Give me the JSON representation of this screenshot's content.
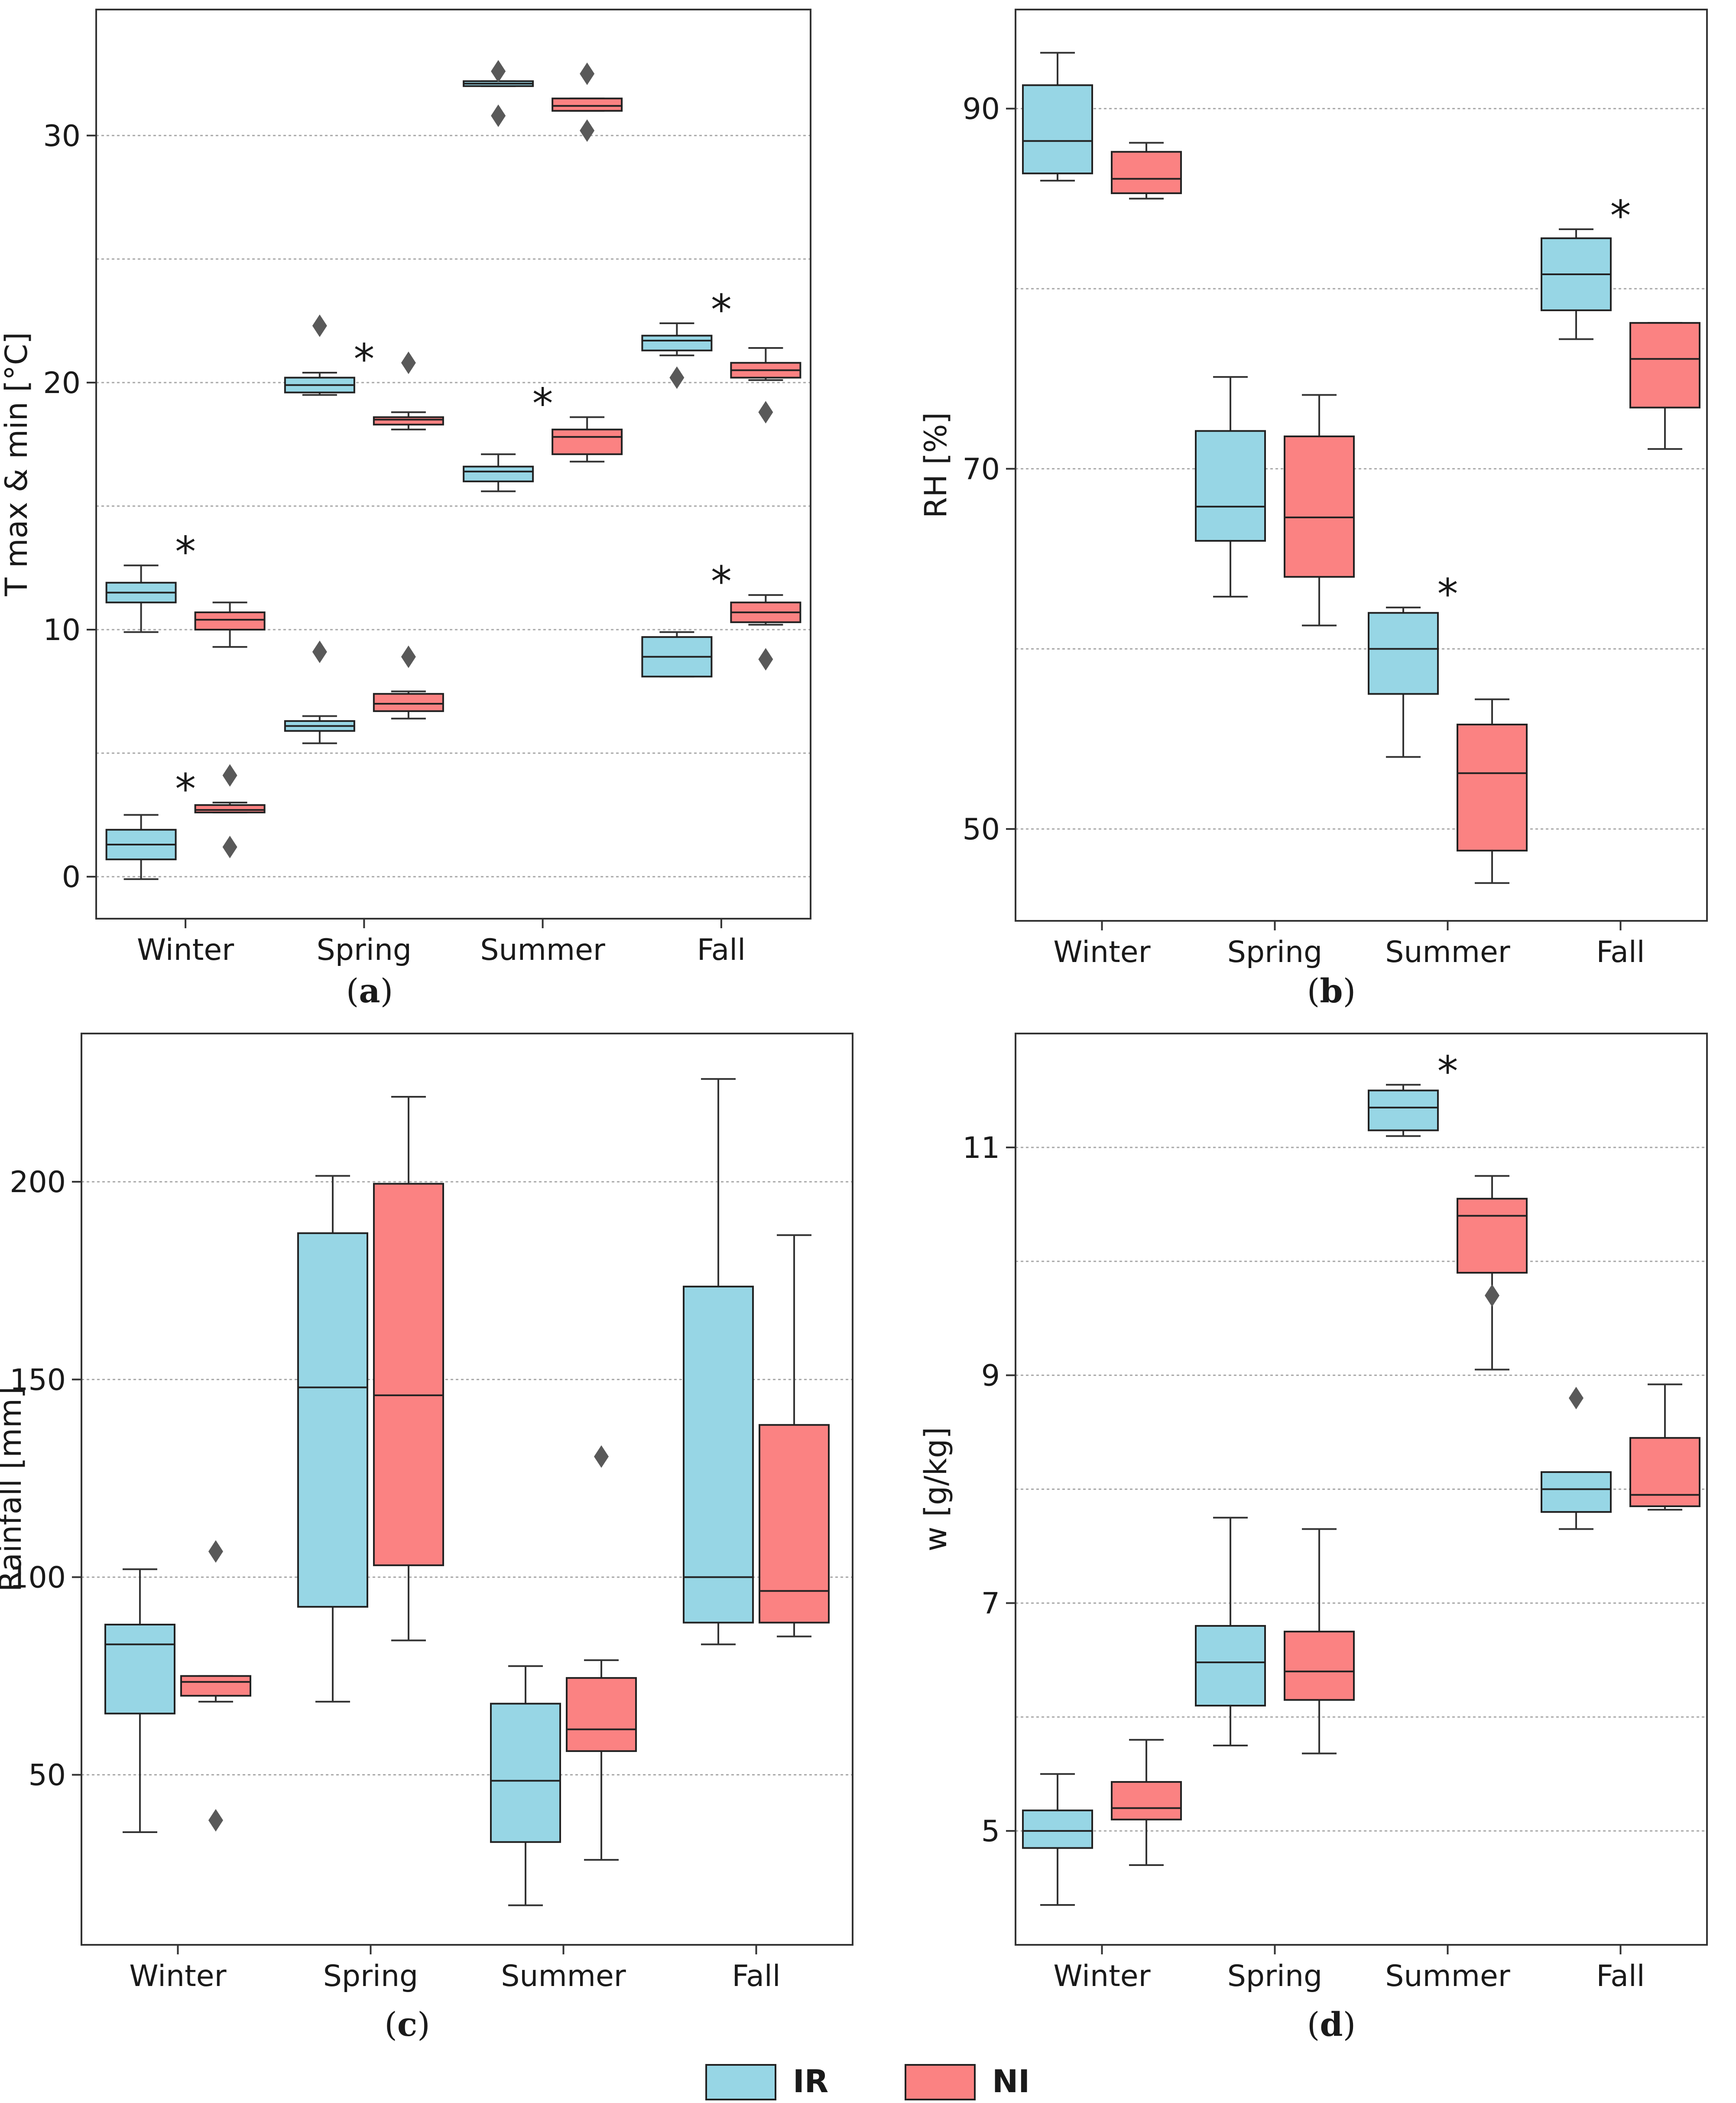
{
  "colors": {
    "IR": "#97d6e5",
    "NI": "#fb8282",
    "grid": "#a8a8a8",
    "outlier": "#595959"
  },
  "legend": {
    "items": [
      {
        "key": "IR",
        "label": "IR"
      },
      {
        "key": "NI",
        "label": "NI"
      }
    ]
  },
  "chart_data": [
    {
      "panel": "a",
      "type": "box",
      "ylabel": "T max & min [°C]",
      "categories": [
        "Winter",
        "Spring",
        "Summer",
        "Fall"
      ],
      "ylim": [
        -1.7,
        35.1
      ],
      "yticks": [
        0,
        10,
        20,
        30
      ],
      "grid_y": [
        0,
        5,
        10,
        15,
        20,
        25,
        30
      ],
      "groups": [
        {
          "category": "Winter",
          "level": "max",
          "IR": {
            "whislo": 9.9,
            "q1": 11.1,
            "med": 11.5,
            "q3": 11.9,
            "whishi": 12.6,
            "fliers": []
          },
          "NI": {
            "whislo": 9.3,
            "q1": 10.0,
            "med": 10.4,
            "q3": 10.7,
            "whishi": 11.1,
            "fliers": []
          },
          "sig": true
        },
        {
          "category": "Winter",
          "level": "min",
          "IR": {
            "whislo": -0.1,
            "q1": 0.7,
            "med": 1.3,
            "q3": 1.9,
            "whishi": 2.5,
            "fliers": []
          },
          "NI": {
            "whislo": 2.6,
            "q1": 2.6,
            "med": 2.7,
            "q3": 2.9,
            "whishi": 3.0,
            "fliers": [
              4.1,
              1.2
            ]
          },
          "sig": true
        },
        {
          "category": "Spring",
          "level": "max",
          "IR": {
            "whislo": 19.5,
            "q1": 19.6,
            "med": 19.9,
            "q3": 20.2,
            "whishi": 20.4,
            "fliers": [
              22.3
            ]
          },
          "NI": {
            "whislo": 18.1,
            "q1": 18.3,
            "med": 18.5,
            "q3": 18.6,
            "whishi": 18.8,
            "fliers": [
              20.8
            ]
          },
          "sig": true
        },
        {
          "category": "Spring",
          "level": "min",
          "IR": {
            "whislo": 5.4,
            "q1": 5.9,
            "med": 6.1,
            "q3": 6.3,
            "whishi": 6.5,
            "fliers": [
              9.1
            ]
          },
          "NI": {
            "whislo": 6.4,
            "q1": 6.7,
            "med": 7.0,
            "q3": 7.4,
            "whishi": 7.5,
            "fliers": [
              8.9
            ]
          },
          "sig": false
        },
        {
          "category": "Summer",
          "level": "max",
          "IR": {
            "whislo": 32.0,
            "q1": 32.0,
            "med": 32.1,
            "q3": 32.2,
            "whishi": 32.2,
            "fliers": [
              32.6,
              30.8
            ]
          },
          "NI": {
            "whislo": 31.0,
            "q1": 31.0,
            "med": 31.2,
            "q3": 31.5,
            "whishi": 31.5,
            "fliers": [
              32.5,
              30.2
            ]
          },
          "sig": false
        },
        {
          "category": "Summer",
          "level": "min",
          "IR": {
            "whislo": 15.6,
            "q1": 16.0,
            "med": 16.4,
            "q3": 16.6,
            "whishi": 17.1,
            "fliers": []
          },
          "NI": {
            "whislo": 16.8,
            "q1": 17.1,
            "med": 17.8,
            "q3": 18.1,
            "whishi": 18.6,
            "fliers": []
          },
          "sig": true
        },
        {
          "category": "Fall",
          "level": "max",
          "IR": {
            "whislo": 21.1,
            "q1": 21.3,
            "med": 21.7,
            "q3": 21.9,
            "whishi": 22.4,
            "fliers": [
              20.2
            ]
          },
          "NI": {
            "whislo": 20.1,
            "q1": 20.2,
            "med": 20.5,
            "q3": 20.8,
            "whishi": 21.4,
            "fliers": [
              18.8
            ]
          },
          "sig": true
        },
        {
          "category": "Fall",
          "level": "min",
          "IR": {
            "whislo": 8.1,
            "q1": 8.1,
            "med": 8.9,
            "q3": 9.7,
            "whishi": 9.9,
            "fliers": []
          },
          "NI": {
            "whislo": 10.2,
            "q1": 10.3,
            "med": 10.7,
            "q3": 11.1,
            "whishi": 11.4,
            "fliers": [
              8.8
            ]
          },
          "sig": true
        }
      ]
    },
    {
      "panel": "b",
      "type": "box",
      "ylabel": "RH [%]",
      "categories": [
        "Winter",
        "Spring",
        "Summer",
        "Fall"
      ],
      "ylim": [
        44.9,
        95.5
      ],
      "yticks": [
        50,
        70,
        90
      ],
      "grid_y": [
        50,
        60,
        70,
        80,
        90
      ],
      "groups": [
        {
          "category": "Winter",
          "IR": {
            "whislo": 86.0,
            "q1": 86.4,
            "med": 88.2,
            "q3": 91.3,
            "whishi": 93.1,
            "fliers": []
          },
          "NI": {
            "whislo": 85.0,
            "q1": 85.3,
            "med": 86.1,
            "q3": 87.6,
            "whishi": 88.1,
            "fliers": []
          },
          "sig": false
        },
        {
          "category": "Spring",
          "IR": {
            "whislo": 62.9,
            "q1": 66.0,
            "med": 67.9,
            "q3": 72.1,
            "whishi": 75.1,
            "fliers": []
          },
          "NI": {
            "whislo": 61.3,
            "q1": 64.0,
            "med": 67.3,
            "q3": 71.8,
            "whishi": 74.1,
            "fliers": []
          },
          "sig": false
        },
        {
          "category": "Summer",
          "IR": {
            "whislo": 54.0,
            "q1": 57.5,
            "med": 60.0,
            "q3": 62.0,
            "whishi": 62.3,
            "fliers": []
          },
          "NI": {
            "whislo": 47.0,
            "q1": 48.8,
            "med": 53.1,
            "q3": 55.8,
            "whishi": 57.2,
            "fliers": []
          },
          "sig": true
        },
        {
          "category": "Fall",
          "IR": {
            "whislo": 77.2,
            "q1": 78.8,
            "med": 80.8,
            "q3": 82.8,
            "whishi": 83.3,
            "fliers": []
          },
          "NI": {
            "whislo": 71.1,
            "q1": 73.4,
            "med": 76.1,
            "q3": 78.1,
            "whishi": 78.1,
            "fliers": []
          },
          "sig": true
        }
      ]
    },
    {
      "panel": "c",
      "type": "box",
      "ylabel": "Rainfall [mm]",
      "categories": [
        "Winter",
        "Spring",
        "Summer",
        "Fall"
      ],
      "ylim": [
        7.0,
        237.5
      ],
      "yticks": [
        50,
        100,
        150,
        200
      ],
      "grid_y": [
        50,
        100,
        150,
        200
      ],
      "groups": [
        {
          "category": "Winter",
          "IR": {
            "whislo": 35.5,
            "q1": 65.5,
            "med": 83.0,
            "q3": 88.0,
            "whishi": 102.0,
            "fliers": []
          },
          "NI": {
            "whislo": 68.5,
            "q1": 70.0,
            "med": 73.5,
            "q3": 75.0,
            "whishi": 75.0,
            "fliers": [
              106.5,
              38.5
            ]
          },
          "sig": false
        },
        {
          "category": "Spring",
          "IR": {
            "whislo": 68.5,
            "q1": 92.5,
            "med": 148.0,
            "q3": 187.0,
            "whishi": 201.5,
            "fliers": []
          },
          "NI": {
            "whislo": 84.0,
            "q1": 103.0,
            "med": 146.0,
            "q3": 199.5,
            "whishi": 221.5,
            "fliers": []
          },
          "sig": false
        },
        {
          "category": "Summer",
          "IR": {
            "whislo": 17.0,
            "q1": 33.0,
            "med": 48.5,
            "q3": 68.0,
            "whishi": 77.5,
            "fliers": []
          },
          "NI": {
            "whislo": 28.5,
            "q1": 56.0,
            "med": 61.5,
            "q3": 74.5,
            "whishi": 79.0,
            "fliers": [
              130.5
            ]
          },
          "sig": false
        },
        {
          "category": "Fall",
          "IR": {
            "whislo": 83.0,
            "q1": 88.5,
            "med": 100.0,
            "q3": 173.5,
            "whishi": 226.0,
            "fliers": []
          },
          "NI": {
            "whislo": 85.0,
            "q1": 88.5,
            "med": 96.5,
            "q3": 138.5,
            "whishi": 186.5,
            "fliers": []
          },
          "sig": false
        }
      ]
    },
    {
      "panel": "d",
      "type": "box",
      "ylabel": "w [g/kg]",
      "categories": [
        "Winter",
        "Spring",
        "Summer",
        "Fall"
      ],
      "ylim": [
        4.0,
        12.0
      ],
      "yticks": [
        5,
        7,
        9,
        11
      ],
      "grid_y": [
        5,
        6,
        7,
        8,
        9,
        10,
        11
      ],
      "groups": [
        {
          "category": "Winter",
          "IR": {
            "whislo": 4.35,
            "q1": 4.85,
            "med": 5.0,
            "q3": 5.18,
            "whishi": 5.5,
            "fliers": []
          },
          "NI": {
            "whislo": 4.7,
            "q1": 5.1,
            "med": 5.2,
            "q3": 5.43,
            "whishi": 5.8,
            "fliers": []
          },
          "sig": false
        },
        {
          "category": "Spring",
          "IR": {
            "whislo": 5.75,
            "q1": 6.1,
            "med": 6.48,
            "q3": 6.8,
            "whishi": 7.75,
            "fliers": []
          },
          "NI": {
            "whislo": 5.68,
            "q1": 6.15,
            "med": 6.4,
            "q3": 6.75,
            "whishi": 7.65,
            "fliers": []
          },
          "sig": false
        },
        {
          "category": "Summer",
          "IR": {
            "whislo": 11.1,
            "q1": 11.15,
            "med": 11.35,
            "q3": 11.5,
            "whishi": 11.55,
            "fliers": []
          },
          "NI": {
            "whislo": 9.05,
            "q1": 9.9,
            "med": 10.4,
            "q3": 10.55,
            "whishi": 10.75,
            "fliers": [
              9.7
            ]
          },
          "sig": true
        },
        {
          "category": "Fall",
          "IR": {
            "whislo": 7.65,
            "q1": 7.8,
            "med": 8.0,
            "q3": 8.15,
            "whishi": 8.15,
            "fliers": [
              8.8
            ]
          },
          "NI": {
            "whislo": 7.82,
            "q1": 7.85,
            "med": 7.95,
            "q3": 8.45,
            "whishi": 8.92,
            "fliers": []
          },
          "sig": false
        }
      ]
    }
  ],
  "panel_labels": [
    "(a)",
    "(b)",
    "(c)",
    "(d)"
  ]
}
